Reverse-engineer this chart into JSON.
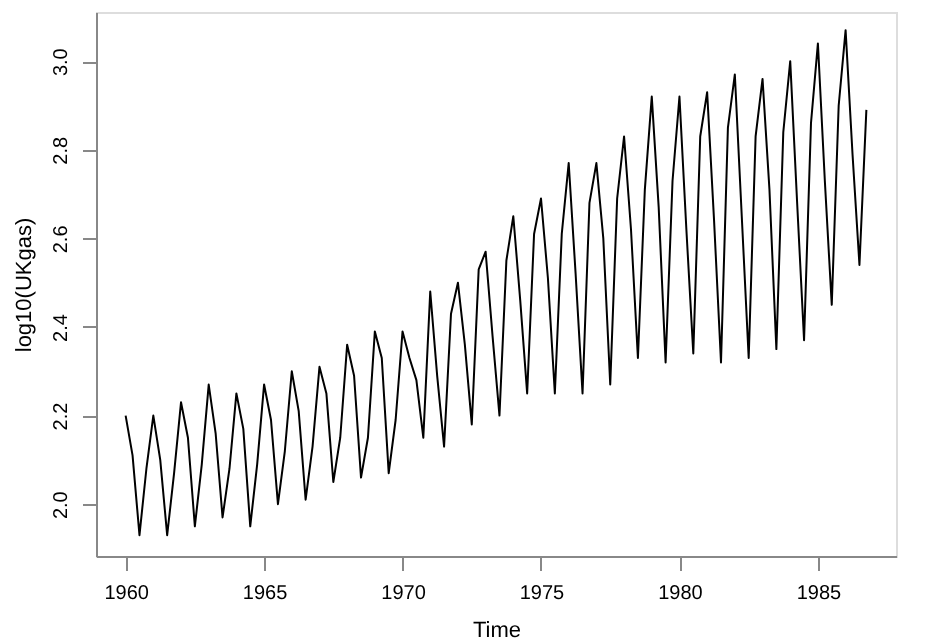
{
  "chart_data": {
    "type": "line",
    "xlabel": "Time",
    "ylabel": "log10(UKgas)",
    "x": [
      1960,
      1960.25,
      1960.5,
      1960.75,
      1961,
      1961.25,
      1961.5,
      1961.75,
      1962,
      1962.25,
      1962.5,
      1962.75,
      1963,
      1963.25,
      1963.5,
      1963.75,
      1964,
      1964.25,
      1964.5,
      1964.75,
      1965,
      1965.25,
      1965.5,
      1965.75,
      1966,
      1966.25,
      1966.5,
      1966.75,
      1967,
      1967.25,
      1967.5,
      1967.75,
      1968,
      1968.25,
      1968.5,
      1968.75,
      1969,
      1969.25,
      1969.5,
      1969.75,
      1970,
      1970.25,
      1970.5,
      1970.75,
      1971,
      1971.25,
      1971.5,
      1971.75,
      1972,
      1972.25,
      1972.5,
      1972.75,
      1973,
      1973.25,
      1973.5,
      1973.75,
      1974,
      1974.25,
      1974.5,
      1974.75,
      1975,
      1975.25,
      1975.5,
      1975.75,
      1976,
      1976.25,
      1976.5,
      1976.75,
      1977,
      1977.25,
      1977.5,
      1977.75,
      1978,
      1978.25,
      1978.5,
      1978.75,
      1979,
      1979.25,
      1979.5,
      1979.75,
      1980,
      1980.25,
      1980.5,
      1980.75,
      1981,
      1981.25,
      1981.5,
      1981.75,
      1982,
      1982.25,
      1982.5,
      1982.75,
      1983,
      1983.25,
      1983.5,
      1983.75,
      1984,
      1984.25,
      1984.5,
      1984.75,
      1985,
      1985.25,
      1985.5,
      1985.75,
      1986,
      1986.25,
      1986.5,
      1986.75
    ],
    "series": [
      {
        "color": "#000000",
        "values": [
          2.2,
          2.11,
          1.93,
          2.08,
          2.2,
          2.1,
          1.93,
          2.07,
          2.23,
          2.15,
          1.95,
          2.09,
          2.27,
          2.16,
          1.97,
          2.08,
          2.25,
          2.17,
          1.95,
          2.09,
          2.27,
          2.19,
          2.0,
          2.12,
          2.3,
          2.21,
          2.01,
          2.13,
          2.31,
          2.25,
          2.05,
          2.15,
          2.36,
          2.29,
          2.06,
          2.15,
          2.39,
          2.33,
          2.07,
          2.19,
          2.39,
          2.33,
          2.28,
          2.15,
          2.48,
          2.29,
          2.13,
          2.43,
          2.5,
          2.36,
          2.18,
          2.53,
          2.57,
          2.38,
          2.2,
          2.55,
          2.65,
          2.46,
          2.25,
          2.61,
          2.69,
          2.51,
          2.25,
          2.61,
          2.77,
          2.52,
          2.25,
          2.68,
          2.77,
          2.6,
          2.27,
          2.69,
          2.83,
          2.62,
          2.33,
          2.71,
          2.92,
          2.67,
          2.32,
          2.73,
          2.92,
          2.62,
          2.34,
          2.83,
          2.93,
          2.64,
          2.32,
          2.85,
          2.97,
          2.65,
          2.33,
          2.83,
          2.96,
          2.71,
          2.35,
          2.84,
          3.0,
          2.68,
          2.37,
          2.86,
          3.04,
          2.73,
          2.45,
          2.9,
          3.07,
          2.79,
          2.54,
          2.89
        ]
      }
    ],
    "xlim": [
      1958.93,
      1987.82
    ],
    "xticks": [
      1960,
      1965,
      1970,
      1975,
      1980,
      1985
    ],
    "ylim": [
      1.883,
      3.111
    ],
    "yticks": [
      {
        "value": 2,
        "label": "2.0"
      },
      2.2,
      2.4,
      2.6,
      2.8,
      {
        "value": 3,
        "label": "3.0"
      }
    ],
    "grid": false,
    "legend": false
  }
}
